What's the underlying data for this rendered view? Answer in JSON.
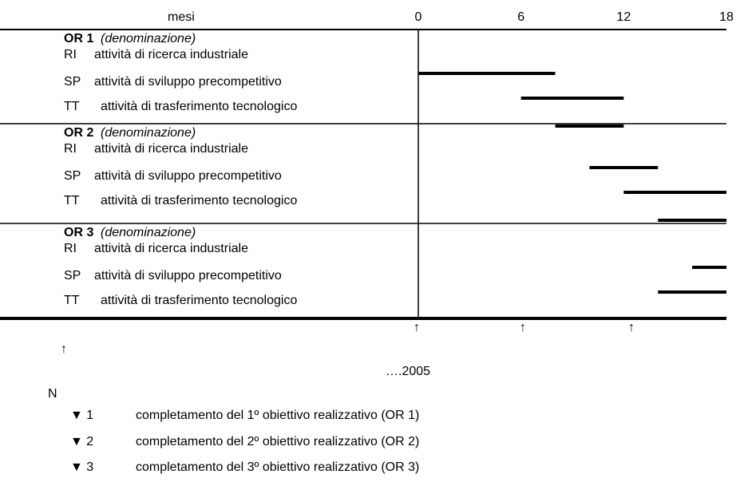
{
  "axis": {
    "label": "mesi",
    "range": [
      0,
      18
    ],
    "ticks": [
      0,
      6,
      12,
      18
    ]
  },
  "sections": [
    {
      "code": "OR 1",
      "name": "(denominazione)",
      "activities": [
        {
          "code": "RI",
          "label": "attività di ricerca industriale",
          "start": 0,
          "end": 8
        },
        {
          "code": "SP",
          "label": "attività di sviluppo precompetitivo",
          "start": 6,
          "end": 12
        },
        {
          "code": "TT",
          "label": "attività di trasferimento tecnologico",
          "start": 8,
          "end": 12
        }
      ]
    },
    {
      "code": "OR 2",
      "name": "(denominazione)",
      "activities": [
        {
          "code": "RI",
          "label": "attività di ricerca industriale",
          "start": 10,
          "end": 14
        },
        {
          "code": "SP",
          "label": "attività di sviluppo precompetitivo",
          "start": 12,
          "end": 18
        },
        {
          "code": "TT",
          "label": "attività di trasferimento tecnologico",
          "start": 14,
          "end": 18
        }
      ]
    },
    {
      "code": "OR 3",
      "name": "(denominazione)",
      "activities": [
        {
          "code": "RI",
          "label": "attività di ricerca industriale",
          "start": 16,
          "end": 18
        },
        {
          "code": "SP",
          "label": "attività di sviluppo precompetitivo",
          "start": 14,
          "end": 18
        },
        {
          "code": "TT",
          "label": "attività di trasferimento tecnologico"
        }
      ]
    }
  ],
  "milestone_arrows": [
    "↑",
    "↑",
    "↑"
  ],
  "side_arrow": "↑",
  "year": "….2005",
  "n_label": "N",
  "legend": [
    {
      "marker": "▼ 1",
      "text": "completamento del 1º obiettivo realizzativo (OR 1)"
    },
    {
      "marker": "▼ 2",
      "text": "completamento del 2º obiettivo realizzativo (OR 2)"
    },
    {
      "marker": "▼ 3",
      "text": "completamento del 3º obiettivo realizzativo (OR 3)"
    }
  ]
}
